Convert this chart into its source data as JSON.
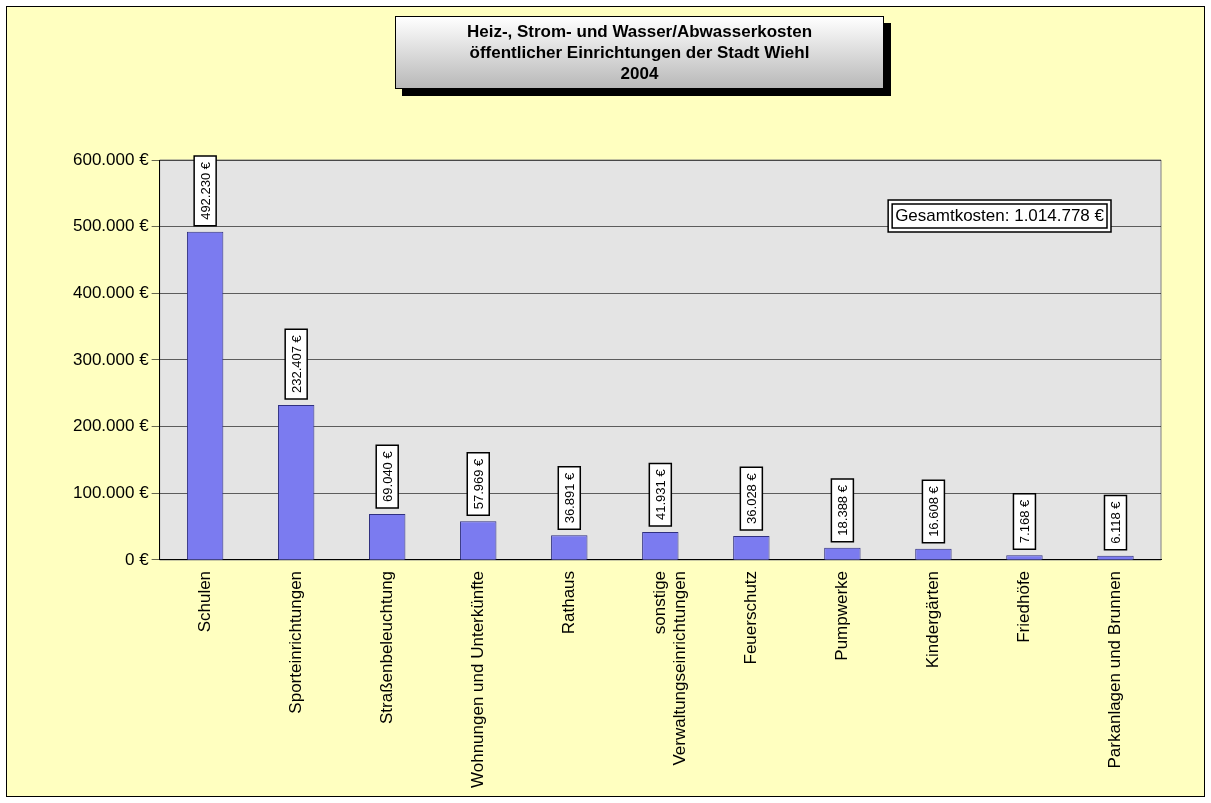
{
  "chart_data": {
    "type": "bar",
    "title": "Heiz-, Strom- und Wasser/Abwasserkosten\nöffentlicher Einrichtungen der Stadt Wiehl\n2004",
    "categories": [
      "Schulen",
      "Sporteinrichtungen",
      "Straßenbeleuchtung",
      "Wohnungen und Unterkünfte",
      "Rathaus",
      "sonstige Verwaltungseinrichtungen",
      "Feuerschutz",
      "Pumpwerke",
      "Kindergärten",
      "Friedhöfe",
      "Parkanlagen und Brunnen"
    ],
    "values": [
      492230,
      232407,
      69040,
      57969,
      36891,
      41931,
      36028,
      18388,
      16608,
      7168,
      6118
    ],
    "value_labels": [
      "492.230 €",
      "232.407 €",
      "69.040 €",
      "57.969 €",
      "36.891 €",
      "41.931 €",
      "36.028 €",
      "18.388 €",
      "16.608 €",
      "7.168 €",
      "6.118 €"
    ],
    "color": "#7b7bf0",
    "ylim": [
      0,
      600000
    ],
    "yticks": [
      {
        "value": 0,
        "label": "0 €"
      },
      {
        "value": 100000,
        "label": "100.000 €"
      },
      {
        "value": 200000,
        "label": "200.000 €"
      },
      {
        "value": 300000,
        "label": "300.000 €"
      },
      {
        "value": 400000,
        "label": "400.000 €"
      },
      {
        "value": 500000,
        "label": "500.000 €"
      },
      {
        "value": 600000,
        "label": "600.000 €"
      }
    ],
    "grid": "y",
    "legend": false,
    "annotations": [
      "Gesamtkosten: 1.014.778 €"
    ]
  }
}
